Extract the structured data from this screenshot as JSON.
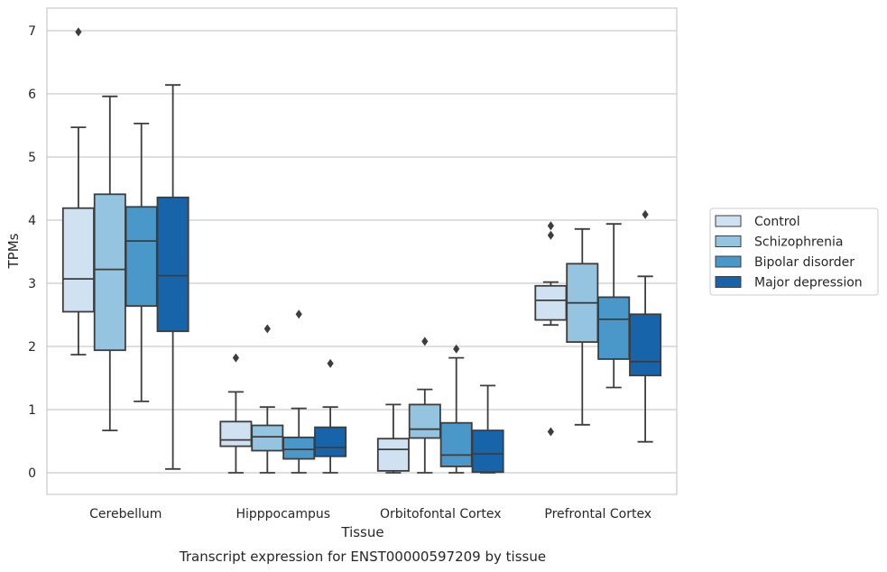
{
  "caption": "Transcript expression for ENST00000597209 by tissue",
  "chart_data": {
    "type": "box",
    "xlabel": "Tissue",
    "ylabel": "TPMs",
    "ylim": [
      -0.33,
      7.35
    ],
    "yticks": [
      0,
      1,
      2,
      3,
      4,
      5,
      6,
      7
    ],
    "grid": "horizontal",
    "legend_position": "right",
    "categories": [
      "Cerebellum",
      "Hipppocampus",
      "Orbitofontal Cortex",
      "Prefrontal Cortex"
    ],
    "series": [
      {
        "name": "Control",
        "color": "#d0e1f2",
        "boxes": [
          {
            "whisker_low": 1.87,
            "q1": 2.55,
            "median": 3.07,
            "q3": 4.19,
            "whisker_high": 5.47,
            "outliers": [
              6.98
            ]
          },
          {
            "whisker_low": 0.0,
            "q1": 0.42,
            "median": 0.52,
            "q3": 0.81,
            "whisker_high": 1.28,
            "outliers": [
              1.82
            ]
          },
          {
            "whisker_low": 0.0,
            "q1": 0.03,
            "median": 0.37,
            "q3": 0.54,
            "whisker_high": 1.08,
            "outliers": []
          },
          {
            "whisker_low": 2.34,
            "q1": 2.42,
            "median": 2.73,
            "q3": 2.96,
            "whisker_high": 3.02,
            "outliers": [
              3.91,
              3.76,
              0.65
            ]
          }
        ]
      },
      {
        "name": "Schizophrenia",
        "color": "#94c4df",
        "boxes": [
          {
            "whisker_low": 0.67,
            "q1": 1.94,
            "median": 3.22,
            "q3": 4.41,
            "whisker_high": 5.96,
            "outliers": []
          },
          {
            "whisker_low": 0.0,
            "q1": 0.35,
            "median": 0.57,
            "q3": 0.75,
            "whisker_high": 1.04,
            "outliers": [
              2.28
            ]
          },
          {
            "whisker_low": 0.0,
            "q1": 0.55,
            "median": 0.69,
            "q3": 1.08,
            "whisker_high": 1.32,
            "outliers": [
              2.08
            ]
          },
          {
            "whisker_low": 0.76,
            "q1": 2.07,
            "median": 2.69,
            "q3": 3.31,
            "whisker_high": 3.86,
            "outliers": []
          }
        ]
      },
      {
        "name": "Bipolar disorder",
        "color": "#4a98c9",
        "boxes": [
          {
            "whisker_low": 1.13,
            "q1": 2.64,
            "median": 3.67,
            "q3": 4.21,
            "whisker_high": 5.53,
            "outliers": []
          },
          {
            "whisker_low": 0.0,
            "q1": 0.22,
            "median": 0.37,
            "q3": 0.56,
            "whisker_high": 1.02,
            "outliers": [
              2.51
            ]
          },
          {
            "whisker_low": 0.0,
            "q1": 0.1,
            "median": 0.28,
            "q3": 0.79,
            "whisker_high": 1.82,
            "outliers": [
              1.96
            ]
          },
          {
            "whisker_low": 1.35,
            "q1": 1.8,
            "median": 2.43,
            "q3": 2.78,
            "whisker_high": 3.94,
            "outliers": []
          }
        ]
      },
      {
        "name": "Major depression",
        "color": "#1764ab",
        "boxes": [
          {
            "whisker_low": 0.06,
            "q1": 2.24,
            "median": 3.12,
            "q3": 4.36,
            "whisker_high": 6.14,
            "outliers": []
          },
          {
            "whisker_low": 0.0,
            "q1": 0.26,
            "median": 0.4,
            "q3": 0.72,
            "whisker_high": 1.04,
            "outliers": [
              1.73
            ]
          },
          {
            "whisker_low": 0.0,
            "q1": 0.01,
            "median": 0.3,
            "q3": 0.67,
            "whisker_high": 1.38,
            "outliers": []
          },
          {
            "whisker_low": 0.49,
            "q1": 1.54,
            "median": 1.76,
            "q3": 2.51,
            "whisker_high": 3.11,
            "outliers": [
              4.09
            ]
          }
        ]
      }
    ]
  }
}
